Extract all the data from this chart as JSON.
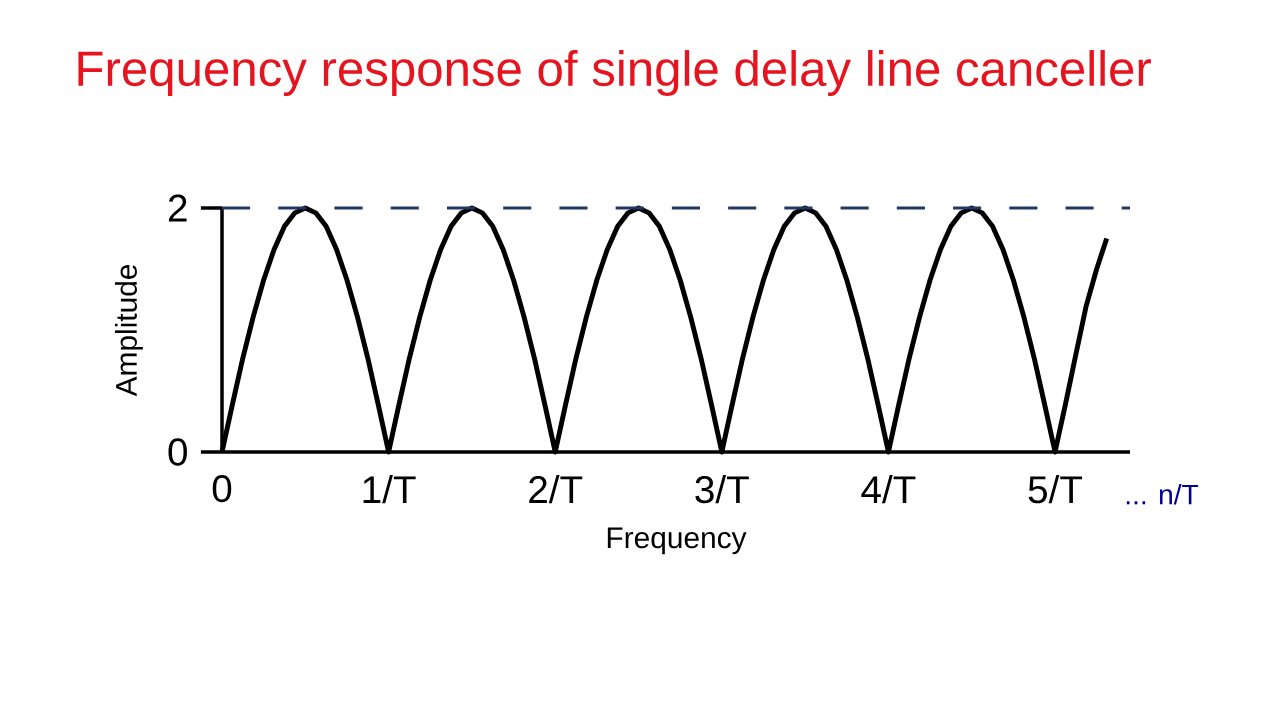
{
  "chart_data": {
    "type": "line",
    "title": "Frequency response of single delay line canceller",
    "xlabel": "Frequency",
    "ylabel": "Amplitude",
    "x": [
      0,
      0.0625,
      0.125,
      0.1875,
      0.25,
      0.3125,
      0.375,
      0.4375,
      0.5,
      0.5625,
      0.625,
      0.6875,
      0.75,
      0.8125,
      0.875,
      0.9375,
      1,
      1.0625,
      1.125,
      1.1875,
      1.25,
      1.3125,
      1.375,
      1.4375,
      1.5,
      1.5625,
      1.625,
      1.6875,
      1.75,
      1.8125,
      1.875,
      1.9375,
      2,
      2.0625,
      2.125,
      2.1875,
      2.25,
      2.3125,
      2.375,
      2.4375,
      2.5,
      2.5625,
      2.625,
      2.6875,
      2.75,
      2.8125,
      2.875,
      2.9375,
      3,
      3.0625,
      3.125,
      3.1875,
      3.25,
      3.3125,
      3.375,
      3.4375,
      3.5,
      3.5625,
      3.625,
      3.6875,
      3.75,
      3.8125,
      3.875,
      3.9375,
      4,
      4.0625,
      4.125,
      4.1875,
      4.25,
      4.3125,
      4.375,
      4.4375,
      4.5,
      4.5625,
      4.625,
      4.6875,
      4.75,
      4.8125,
      4.875,
      4.9375,
      5,
      5.0625,
      5.125,
      5.1875,
      5.25,
      5.31
    ],
    "series": [
      {
        "color": "#000000",
        "values": [
          0,
          0.39,
          0.77,
          1.11,
          1.41,
          1.66,
          1.85,
          1.96,
          2,
          1.96,
          1.85,
          1.66,
          1.41,
          1.11,
          0.77,
          0.39,
          0,
          0.39,
          0.77,
          1.11,
          1.41,
          1.66,
          1.85,
          1.96,
          2,
          1.96,
          1.85,
          1.66,
          1.41,
          1.11,
          0.77,
          0.39,
          0,
          0.39,
          0.77,
          1.11,
          1.41,
          1.66,
          1.85,
          1.96,
          2,
          1.96,
          1.85,
          1.66,
          1.41,
          1.11,
          0.77,
          0.39,
          0,
          0.39,
          0.77,
          1.11,
          1.41,
          1.66,
          1.85,
          1.96,
          2,
          1.96,
          1.85,
          1.66,
          1.41,
          1.11,
          0.77,
          0.39,
          0,
          0.39,
          0.77,
          1.11,
          1.41,
          1.66,
          1.85,
          1.96,
          2,
          1.96,
          1.85,
          1.66,
          1.41,
          1.11,
          0.77,
          0.39,
          0,
          0.39,
          0.8,
          1.2,
          1.5,
          1.75
        ]
      }
    ],
    "xlim": [
      0,
      5.45
    ],
    "ylim": [
      0,
      2
    ],
    "xticks": [
      0,
      {
        "value": 1,
        "label": "1/T"
      },
      {
        "value": 2,
        "label": "2/T"
      },
      {
        "value": 3,
        "label": "3/T"
      },
      {
        "value": 4,
        "label": "4/T"
      },
      {
        "value": 5,
        "label": "5/T"
      }
    ],
    "yticks": [
      0,
      2
    ],
    "ref_lines": [
      {
        "axis": "y",
        "value": 2,
        "color": "#1f3864",
        "line_style": "dashed"
      }
    ],
    "annotations": [
      "... n/T"
    ],
    "grid": false,
    "marker": "none",
    "line_style": "solid"
  }
}
